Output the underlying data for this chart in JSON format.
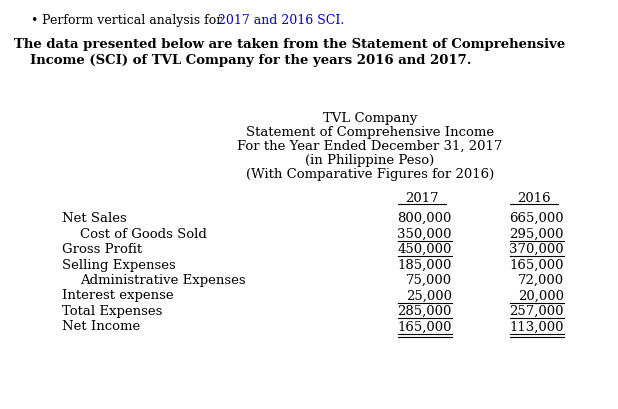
{
  "bullet_pre": "Perform vertical analysis for ",
  "bullet_highlight": "2017 and 2016 SCI.",
  "intro_line1": "The data presented below are taken from the Statement of Comprehensive",
  "intro_line2": "Income (SCI) of TVL Company for the years 2016 and 2017.",
  "header_lines": [
    "TVL Company",
    "Statement of Comprehensive Income",
    "For the Year Ended December 31, 2017",
    "(in Philippine Peso)",
    "(With Comparative Figures for 2016)"
  ],
  "col_2017": "2017",
  "col_2016": "2016",
  "rows": [
    {
      "label": "Net Sales",
      "indent": 0,
      "val2017": "800,000",
      "val2016": "665,000",
      "ul": false,
      "dul": false
    },
    {
      "label": "Cost of Goods Sold",
      "indent": 1,
      "val2017": "350,000",
      "val2016": "295,000",
      "ul": true,
      "dul": false
    },
    {
      "label": "Gross Profit",
      "indent": 0,
      "val2017": "450,000",
      "val2016": "370,000",
      "ul": true,
      "dul": false
    },
    {
      "label": "Selling Expenses",
      "indent": 0,
      "val2017": "185,000",
      "val2016": "165,000",
      "ul": false,
      "dul": false
    },
    {
      "label": "Administrative Expenses",
      "indent": 1,
      "val2017": "75,000",
      "val2016": "72,000",
      "ul": false,
      "dul": false
    },
    {
      "label": "Interest expense",
      "indent": 0,
      "val2017": "25,000",
      "val2016": "20,000",
      "ul": true,
      "dul": false
    },
    {
      "label": "Total Expenses",
      "indent": 0,
      "val2017": "285,000",
      "val2016": "257,000",
      "ul": true,
      "dul": false
    },
    {
      "label": "Net Income",
      "indent": 0,
      "val2017": "165,000",
      "val2016": "113,000",
      "ul": true,
      "dul": true
    }
  ],
  "bg_color": "#ffffff",
  "text_color": "#000000",
  "blue_color": "#0000cc",
  "fig_width": 6.18,
  "fig_height": 4.1,
  "dpi": 100
}
